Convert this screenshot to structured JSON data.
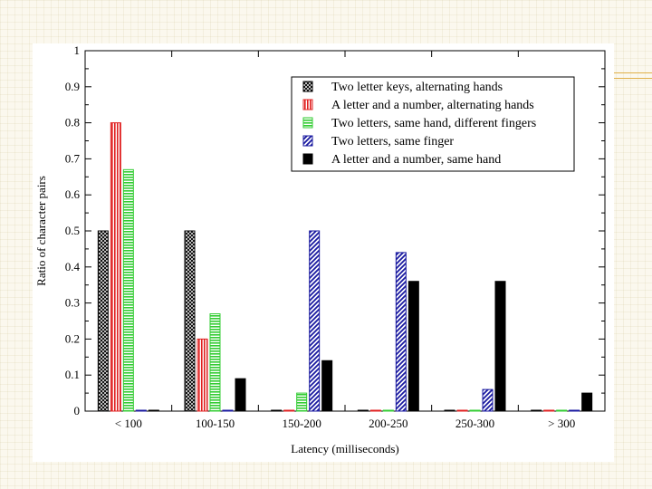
{
  "chart_data": {
    "type": "bar",
    "categories": [
      "< 100",
      "100-150",
      "150-200",
      "200-250",
      "250-300",
      "> 300"
    ],
    "xlabel": "Latency (milliseconds)",
    "ylabel": "Ratio of character pairs",
    "ylim": [
      0,
      1
    ],
    "yticks": [
      "0",
      "0.1",
      "0.2",
      "0.3",
      "0.4",
      "0.5",
      "0.6",
      "0.7",
      "0.8",
      "0.9",
      "1"
    ],
    "grid": false,
    "legend_position": "top-right",
    "series": [
      {
        "name": "Two letter keys, alternating hands",
        "pattern": "crosshatch",
        "color": "#000000",
        "values": [
          0.5,
          0.5,
          0.0,
          0.0,
          0.0,
          0.0
        ]
      },
      {
        "name": "A letter and a number, alternating hands",
        "pattern": "vertical",
        "color": "#e02020",
        "values": [
          0.8,
          0.2,
          0.0,
          0.0,
          0.0,
          0.0
        ]
      },
      {
        "name": "Two letters, same hand, different fingers",
        "pattern": "horizontal",
        "color": "#33cc33",
        "values": [
          0.67,
          0.27,
          0.05,
          0.0,
          0.0,
          0.0
        ]
      },
      {
        "name": "Two letters, same finger",
        "pattern": "diagonal",
        "color": "#1a1aa0",
        "values": [
          0.0,
          0.0,
          0.5,
          0.44,
          0.06,
          0.0
        ]
      },
      {
        "name": "A letter and a number, same hand",
        "pattern": "solid",
        "color": "#000000",
        "values": [
          0.0,
          0.09,
          0.14,
          0.36,
          0.36,
          0.05
        ]
      }
    ]
  }
}
